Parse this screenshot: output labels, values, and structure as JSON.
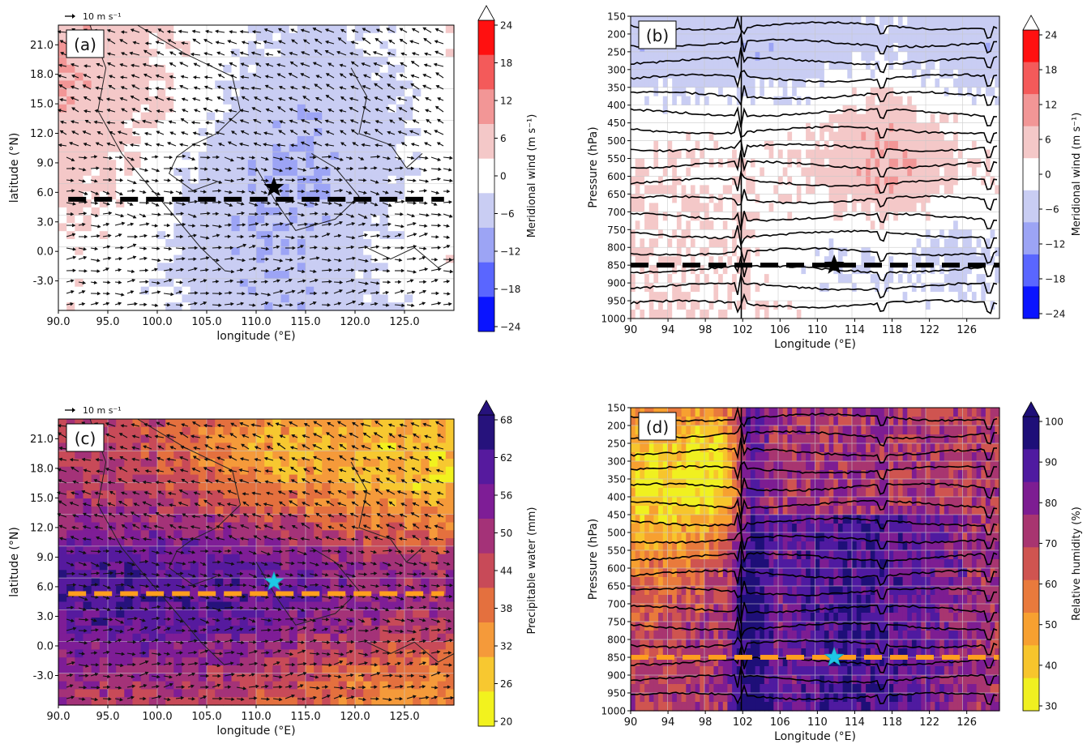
{
  "colors": {
    "wind_div": [
      "#0a14ff",
      "#5a66ff",
      "#9ca4f5",
      "#c9cdf3",
      "#ffffff",
      "#f4c8c8",
      "#f29696",
      "#f45a5a",
      "#ff1010"
    ],
    "pw_seq": [
      "#f2f21e",
      "#f7c830",
      "#f59a3a",
      "#e4703e",
      "#c84a58",
      "#a43278",
      "#7e1d96",
      "#561a9e",
      "#26127c"
    ],
    "rh_seq": [
      "#f0f020",
      "#f7c52c",
      "#f7a030",
      "#e97a3c",
      "#cf5450",
      "#a83570",
      "#7d1d92",
      "#4f1aa0",
      "#1e0f78"
    ],
    "section_line_dark": "#000000",
    "section_line_orange": "#ff9e1f",
    "star_black": "#000000",
    "star_cyan": "#1ec8e6"
  },
  "chart_data": [
    {
      "panel": "(a)",
      "type": "heatmap",
      "xlabel": "longitude (°E)",
      "ylabel": "latitude (°N)",
      "xticks": [
        "90.0",
        "95.0",
        "100.0",
        "105.0",
        "110.0",
        "115.0",
        "120.0",
        "125.0"
      ],
      "yticks": [
        "21.0",
        "18.0",
        "15.0",
        "12.0",
        "9.0",
        "6.0",
        "3.0",
        "0.0",
        "-3.0"
      ],
      "xlim": [
        90,
        130
      ],
      "ylim": [
        -6,
        23
      ],
      "ref_vector": "10 m s⁻¹",
      "cbar_label": "Meridional wind (m s⁻¹)",
      "cbar_ticks": [
        "24",
        "18",
        "12",
        "6",
        "0",
        "−6",
        "−12",
        "−18",
        "−24"
      ],
      "cbar_range": [
        -24,
        24
      ],
      "section": {
        "lat": 5.3,
        "from": 91,
        "to": 129
      },
      "star": {
        "lon": 111.8,
        "lat": 6.5
      }
    },
    {
      "panel": "(b)",
      "type": "heatmap",
      "xlabel": "Longitude (°E)",
      "ylabel": "Pressure (hPa)",
      "xticks": [
        "90",
        "94",
        "98",
        "102",
        "106",
        "110",
        "114",
        "118",
        "122",
        "126"
      ],
      "yticks": [
        "150",
        "200",
        "250",
        "300",
        "350",
        "400",
        "450",
        "500",
        "550",
        "600",
        "650",
        "700",
        "750",
        "800",
        "850",
        "900",
        "950",
        "1000"
      ],
      "xlim": [
        90,
        129.5
      ],
      "ylim": [
        1000,
        150
      ],
      "cbar_label": "Meridional wind (m s⁻¹)",
      "cbar_ticks": [
        "24",
        "18",
        "12",
        "6",
        "0",
        "−6",
        "−12",
        "−18",
        "−24"
      ],
      "cbar_range": [
        -24,
        24
      ],
      "section": {
        "p": 850,
        "from": 90,
        "to": 129.5
      },
      "star": {
        "lon": 111.8,
        "p": 850
      }
    },
    {
      "panel": "(c)",
      "type": "heatmap",
      "xlabel": "longitude (°E)",
      "ylabel": "latitude (°N)",
      "xticks": [
        "90.0",
        "95.0",
        "100.0",
        "105.0",
        "110.0",
        "115.0",
        "120.0",
        "125.0"
      ],
      "yticks": [
        "21.0",
        "18.0",
        "15.0",
        "12.0",
        "9.0",
        "6.0",
        "3.0",
        "0.0",
        "-3.0"
      ],
      "xlim": [
        90,
        130
      ],
      "ylim": [
        -6,
        23
      ],
      "ref_vector": "10 m s⁻¹",
      "cbar_label": "Precipitable water (mm)",
      "cbar_ticks": [
        "68",
        "62",
        "56",
        "50",
        "44",
        "38",
        "32",
        "26",
        "20"
      ],
      "cbar_range": [
        20,
        68
      ],
      "section": {
        "lat": 5.3,
        "from": 91,
        "to": 129
      },
      "star": {
        "lon": 111.8,
        "lat": 6.5
      }
    },
    {
      "panel": "(d)",
      "type": "heatmap",
      "xlabel": "Longitude (°E)",
      "ylabel": "Pressure (hPa)",
      "xticks": [
        "90",
        "94",
        "98",
        "102",
        "106",
        "110",
        "114",
        "118",
        "122",
        "126"
      ],
      "yticks": [
        "150",
        "200",
        "250",
        "300",
        "350",
        "400",
        "450",
        "500",
        "550",
        "600",
        "650",
        "700",
        "750",
        "800",
        "850",
        "900",
        "950",
        "1000"
      ],
      "xlim": [
        90,
        129.5
      ],
      "ylim": [
        1000,
        150
      ],
      "cbar_label": "Relative humidity (%)",
      "cbar_ticks": [
        "100",
        "90",
        "80",
        "70",
        "60",
        "50",
        "40",
        "30"
      ],
      "cbar_range": [
        30,
        100
      ],
      "section": {
        "p": 850,
        "from": 90,
        "to": 129.5
      },
      "star": {
        "lon": 111.8,
        "p": 850
      }
    }
  ]
}
